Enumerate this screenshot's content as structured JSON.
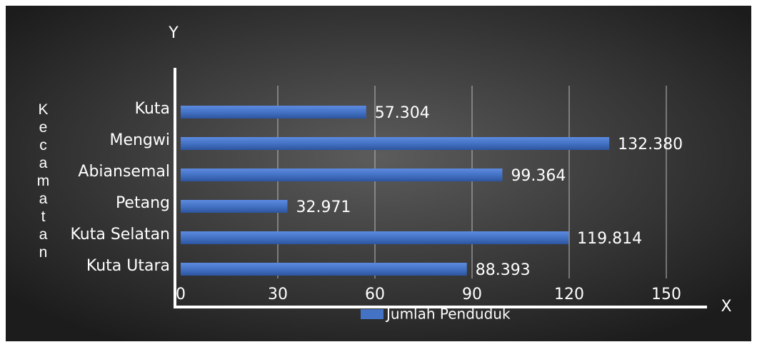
{
  "chart_data": {
    "type": "barh",
    "y_title": "Kecamatan",
    "x_label": "X",
    "y_label": "Y",
    "categories": [
      "Kuta",
      "Mengwi",
      "Abiansemal",
      "Petang",
      "Kuta Selatan",
      "Kuta Utara"
    ],
    "series": [
      {
        "name": "Jumlah Penduduk",
        "color": "#4472c4",
        "values": [
          57.304,
          132.38,
          99.364,
          32.971,
          119.814,
          88.393
        ],
        "value_labels": [
          "57.304",
          "132.380",
          "99.364",
          "32.971",
          "119.814",
          "88.393"
        ]
      }
    ],
    "xlim": [
      0,
      150
    ],
    "xticks": [
      0,
      30,
      60,
      90,
      120,
      150
    ],
    "grid": true
  }
}
